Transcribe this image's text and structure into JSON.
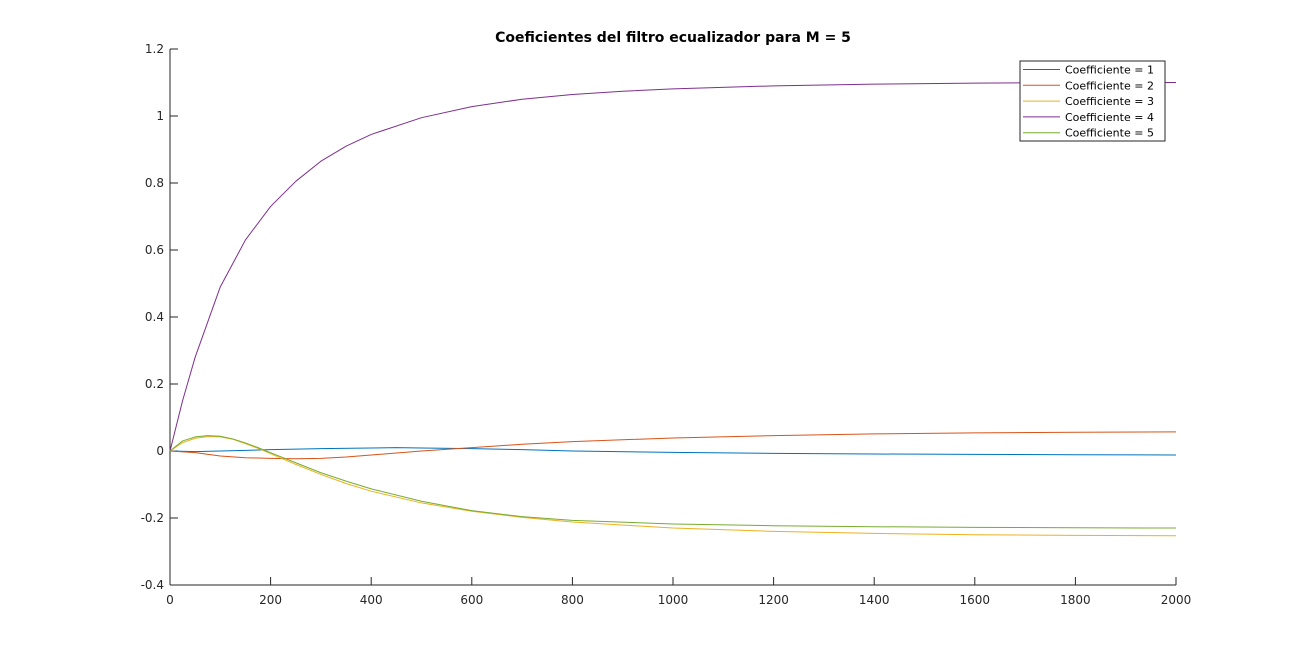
{
  "chart_data": {
    "type": "line",
    "title": "Coeficientes del filtro ecualizador para M = 5",
    "xlabel": "",
    "ylabel": "",
    "xlim": [
      0,
      2000
    ],
    "ylim": [
      -0.4,
      1.2
    ],
    "x_ticks": [
      "0",
      "200",
      "400",
      "600",
      "800",
      "1000",
      "1200",
      "1400",
      "1600",
      "1800",
      "2000"
    ],
    "y_ticks": [
      "-0.4",
      "-0.2",
      "0",
      "0.2",
      "0.4",
      "0.6",
      "0.8",
      "1",
      "1.2"
    ],
    "x_tick_values": [
      0,
      200,
      400,
      600,
      800,
      1000,
      1200,
      1400,
      1600,
      1800,
      2000
    ],
    "y_tick_values": [
      -0.4,
      -0.2,
      0,
      0.2,
      0.4,
      0.6,
      0.8,
      1.0,
      1.2
    ],
    "grid": false,
    "legend_position": "top-right",
    "series": [
      {
        "name": "Coefficiente = 1",
        "color": "#0072BD",
        "x": [
          0,
          50,
          100,
          150,
          200,
          300,
          400,
          450,
          500,
          600,
          700,
          800,
          1000,
          1200,
          1400,
          1600,
          1800,
          2000
        ],
        "y": [
          0,
          -0.002,
          0.0,
          0.002,
          0.004,
          0.007,
          0.009,
          0.01,
          0.009,
          0.007,
          0.004,
          0.0,
          -0.004,
          -0.007,
          -0.009,
          -0.01,
          -0.011,
          -0.012
        ]
      },
      {
        "name": "Coefficiente = 2",
        "color": "#D95319",
        "x": [
          0,
          50,
          100,
          150,
          200,
          250,
          300,
          350,
          400,
          500,
          600,
          700,
          800,
          1000,
          1200,
          1400,
          1600,
          1800,
          2000
        ],
        "y": [
          0,
          -0.005,
          -0.015,
          -0.02,
          -0.022,
          -0.023,
          -0.022,
          -0.018,
          -0.012,
          0.0,
          0.01,
          0.02,
          0.028,
          0.039,
          0.046,
          0.051,
          0.054,
          0.056,
          0.057
        ]
      },
      {
        "name": "Coefficiente = 3",
        "color": "#EDB120",
        "x": [
          0,
          25,
          50,
          75,
          100,
          125,
          150,
          175,
          200,
          250,
          300,
          350,
          400,
          500,
          600,
          700,
          800,
          1000,
          1200,
          1400,
          1600,
          1800,
          2000
        ],
        "y": [
          0,
          0.025,
          0.038,
          0.043,
          0.042,
          0.035,
          0.022,
          0.008,
          -0.008,
          -0.04,
          -0.07,
          -0.097,
          -0.12,
          -0.155,
          -0.18,
          -0.198,
          -0.212,
          -0.23,
          -0.24,
          -0.246,
          -0.25,
          -0.252,
          -0.253
        ]
      },
      {
        "name": "Coefficiente = 4",
        "color": "#7E2F8E",
        "x": [
          0,
          25,
          50,
          100,
          150,
          200,
          250,
          300,
          350,
          400,
          500,
          600,
          700,
          800,
          900,
          1000,
          1200,
          1400,
          1600,
          1800,
          2000
        ],
        "y": [
          0,
          0.15,
          0.28,
          0.49,
          0.63,
          0.73,
          0.805,
          0.865,
          0.91,
          0.945,
          0.995,
          1.028,
          1.05,
          1.064,
          1.074,
          1.081,
          1.09,
          1.095,
          1.098,
          1.1,
          1.1
        ]
      },
      {
        "name": "Coefficiente = 5",
        "color": "#77AC30",
        "x": [
          0,
          25,
          50,
          75,
          100,
          125,
          150,
          175,
          200,
          250,
          300,
          350,
          400,
          500,
          600,
          700,
          800,
          1000,
          1200,
          1400,
          1600,
          1800,
          2000
        ],
        "y": [
          0,
          0.03,
          0.042,
          0.046,
          0.044,
          0.036,
          0.024,
          0.01,
          -0.005,
          -0.035,
          -0.065,
          -0.09,
          -0.113,
          -0.15,
          -0.178,
          -0.196,
          -0.207,
          -0.218,
          -0.223,
          -0.226,
          -0.228,
          -0.229,
          -0.23
        ]
      }
    ]
  }
}
